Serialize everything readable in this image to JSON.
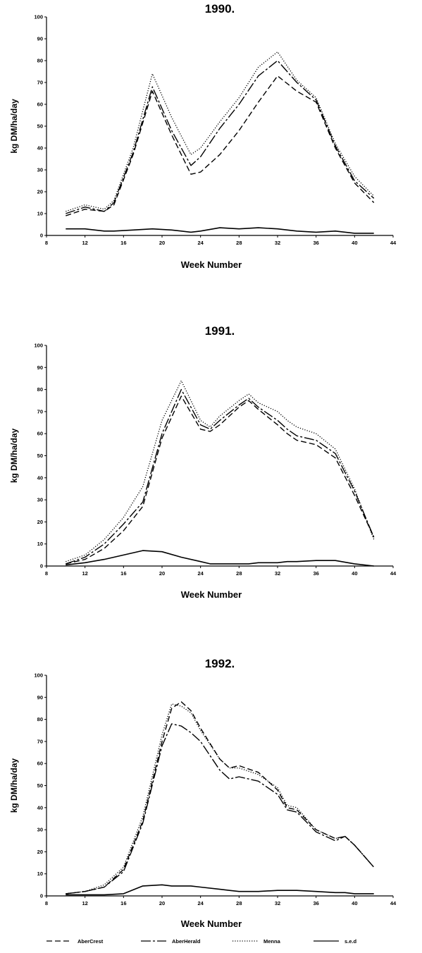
{
  "legend": {
    "items": [
      {
        "label": "AberCrest",
        "dash": "8,4"
      },
      {
        "label": "AberHerald",
        "dash": "14,3,3,3"
      },
      {
        "label": "Menna",
        "dash": "1.2,2.2"
      },
      {
        "label": "s.e.d",
        "dash": ""
      }
    ]
  },
  "chart_data": [
    {
      "type": "line",
      "title": "1990.",
      "xlabel": "Week Number",
      "ylabel": "kg DM/ha/day",
      "xlim": [
        8,
        44
      ],
      "ylim": [
        0,
        100
      ],
      "xticks": [
        8,
        12,
        16,
        20,
        24,
        28,
        32,
        36,
        40,
        44
      ],
      "yticks": [
        0,
        10,
        20,
        30,
        40,
        50,
        60,
        70,
        80,
        90,
        100
      ],
      "x": [
        10,
        12,
        14,
        15,
        17,
        19,
        21,
        23,
        24,
        26,
        28,
        30,
        32,
        34,
        36,
        38,
        40,
        42
      ],
      "series": [
        {
          "name": "AberCrest",
          "values": [
            9,
            12,
            11,
            14,
            37,
            66,
            46,
            28,
            29,
            37,
            48,
            61,
            73,
            66,
            61,
            40,
            24,
            15
          ]
        },
        {
          "name": "AberHerald",
          "values": [
            10,
            13,
            11,
            15,
            38,
            68,
            48,
            32,
            36,
            49,
            60,
            73,
            80,
            70,
            62,
            41,
            25,
            17
          ]
        },
        {
          "name": "Menna",
          "values": [
            11,
            14,
            12,
            16,
            40,
            74,
            54,
            37,
            40,
            52,
            63,
            77,
            84,
            71,
            63,
            42,
            27,
            18
          ]
        },
        {
          "name": "s.e.d",
          "values": [
            3,
            3,
            2,
            2,
            2.5,
            3,
            2.5,
            1.5,
            2,
            3.5,
            3,
            3.5,
            3,
            2,
            1.5,
            2,
            1,
            1
          ]
        }
      ]
    },
    {
      "type": "line",
      "title": "1991.",
      "xlabel": "Week Number",
      "ylabel": "kg DM/ha/day",
      "xlim": [
        8,
        44
      ],
      "ylim": [
        0,
        100
      ],
      "xticks": [
        8,
        12,
        16,
        20,
        24,
        28,
        32,
        36,
        40,
        44
      ],
      "yticks": [
        0,
        10,
        20,
        30,
        40,
        50,
        60,
        70,
        80,
        90,
        100
      ],
      "x": [
        10,
        12,
        14,
        16,
        18,
        20,
        22,
        24,
        25,
        26,
        28,
        29,
        30,
        32,
        33,
        34,
        36,
        38,
        40,
        42
      ],
      "series": [
        {
          "name": "AberCrest",
          "values": [
            1,
            3,
            8,
            16,
            27,
            58,
            77,
            62,
            61,
            64,
            72,
            75,
            71,
            64,
            60,
            57,
            55,
            49,
            32,
            13
          ]
        },
        {
          "name": "AberHerald",
          "values": [
            1,
            4,
            10,
            19,
            29,
            60,
            80,
            64,
            62,
            66,
            73,
            76,
            72,
            66,
            62,
            59,
            57,
            51,
            34,
            13
          ]
        },
        {
          "name": "Menna",
          "values": [
            2,
            5,
            12,
            22,
            36,
            66,
            84,
            66,
            63,
            68,
            75,
            78,
            74,
            70,
            66,
            63,
            60,
            53,
            35,
            12
          ]
        },
        {
          "name": "s.e.d",
          "values": [
            0.5,
            1.5,
            3,
            5,
            7,
            6.5,
            4,
            2,
            1,
            1,
            1,
            1,
            1.5,
            1.5,
            2,
            2,
            2.5,
            2.5,
            1,
            0
          ]
        }
      ]
    },
    {
      "type": "line",
      "title": "1992.",
      "xlabel": "Week Number",
      "ylabel": "kg DM/ha/day",
      "xlim": [
        8,
        44
      ],
      "ylim": [
        0,
        100
      ],
      "xticks": [
        8,
        12,
        16,
        20,
        24,
        28,
        32,
        36,
        40,
        44
      ],
      "yticks": [
        0,
        10,
        20,
        30,
        40,
        50,
        60,
        70,
        80,
        90,
        100
      ],
      "x": [
        10,
        12,
        14,
        16,
        18,
        20,
        21,
        22,
        23,
        24,
        26,
        27,
        28,
        30,
        32,
        33,
        34,
        36,
        38,
        39,
        40,
        42
      ],
      "series": [
        {
          "name": "AberCrest",
          "values": [
            1,
            2,
            4,
            12,
            34,
            70,
            85,
            88,
            84,
            76,
            62,
            58,
            59,
            56,
            48,
            40,
            39,
            30,
            26,
            27,
            23,
            13
          ]
        },
        {
          "name": "AberHerald",
          "values": [
            1,
            2,
            4,
            11,
            33,
            68,
            78,
            77,
            74,
            70,
            57,
            53,
            54,
            52,
            46,
            39,
            38,
            29,
            25,
            27,
            23,
            13
          ]
        },
        {
          "name": "Menna",
          "values": [
            1,
            2,
            5,
            13,
            36,
            73,
            87,
            86,
            83,
            75,
            62,
            58,
            58,
            55,
            49,
            41,
            40,
            30,
            26,
            27,
            23,
            13
          ]
        },
        {
          "name": "s.e.d",
          "values": [
            0.5,
            0.5,
            0.5,
            1,
            4.5,
            5,
            4.5,
            4.5,
            4.5,
            4,
            3,
            2.5,
            2,
            2,
            2.5,
            2.5,
            2.5,
            2,
            1.5,
            1.5,
            1,
            1
          ]
        }
      ]
    }
  ]
}
